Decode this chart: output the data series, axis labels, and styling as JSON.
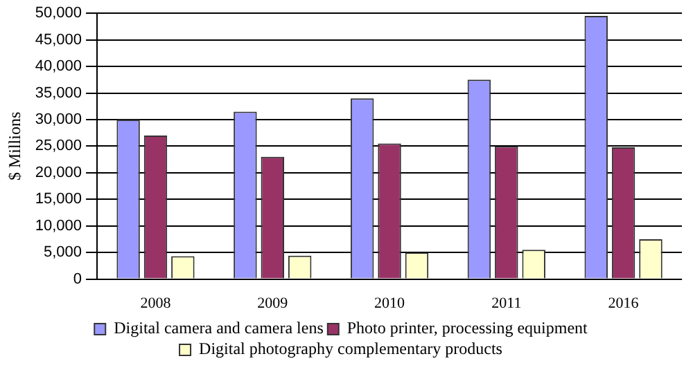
{
  "chart_data": {
    "type": "bar",
    "ylabel": "$ Millions",
    "categories": [
      "2008",
      "2009",
      "2010",
      "2011",
      "2016"
    ],
    "series": [
      {
        "name": "Digital camera and camera lens",
        "color": "#9999ff",
        "values": [
          30000,
          31500,
          34000,
          37500,
          49500
        ]
      },
      {
        "name": "Photo printer, processing equipment",
        "color": "#993366",
        "values": [
          27000,
          23000,
          25500,
          25000,
          24800
        ]
      },
      {
        "name": "Digital photography complementary products",
        "color": "#ffffcc",
        "values": [
          4300,
          4400,
          5000,
          5500,
          7500
        ]
      }
    ],
    "ylim": [
      0,
      50000
    ],
    "yticks": [
      0,
      {
        "value": 5000,
        "label": "5,000"
      },
      {
        "value": 10000,
        "label": "10,000"
      },
      {
        "value": 15000,
        "label": "15,000"
      },
      {
        "value": 20000,
        "label": "20,000"
      },
      {
        "value": 25000,
        "label": "25,000"
      },
      {
        "value": 30000,
        "label": "30,000"
      },
      {
        "value": 35000,
        "label": "35,000"
      },
      {
        "value": 40000,
        "label": "40,000"
      },
      {
        "value": 45000,
        "label": "45,000"
      },
      {
        "value": 50000,
        "label": "50,000"
      }
    ],
    "grid": "y",
    "legend": "bottom"
  }
}
